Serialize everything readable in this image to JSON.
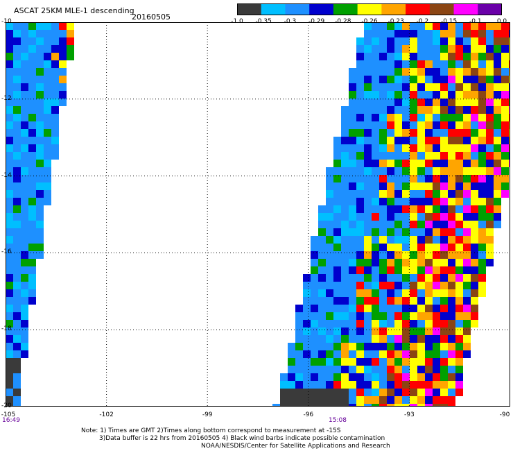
{
  "header": {
    "title": "ASCAT 25KM MLE-1 descending",
    "date": "20160505"
  },
  "legend": {
    "tick_labels": [
      "-1.0",
      "-0.35",
      "-0.3",
      "-0.29",
      "-0.28",
      "-0.26",
      "-0.23",
      "-0.2",
      "-0.15",
      "-0.1",
      "0.0"
    ],
    "colors": [
      "#3a3a3a",
      "#00bfff",
      "#1e90ff",
      "#0000cd",
      "#00a000",
      "#ffff00",
      "#ffa500",
      "#ff0000",
      "#8b4513",
      "#ff00ff",
      "#6a00a8"
    ]
  },
  "map": {
    "lat_labels": [
      "-10",
      "-12",
      "-14",
      "-16",
      "-18",
      "-20"
    ],
    "lon_labels": [
      "-105",
      "-102",
      "-99",
      "-96",
      "-93",
      "-90"
    ],
    "pass_times": [
      "16:49",
      "15:08"
    ],
    "colors": {
      "background": "#ffffff",
      "swath_fill": "#1e90ff",
      "grid": "#000000"
    }
  },
  "footer": {
    "note_line1": "Note: 1) Times are GMT 2)Times along bottom correspond to measurement at -15S",
    "note_line2": "3)Data buffer is 22 hrs from 20160505 4) Black wind barbs indicate possible contamination",
    "note_line3": "NOAA/NESDIS/Center for Satellite Applications and Research"
  }
}
